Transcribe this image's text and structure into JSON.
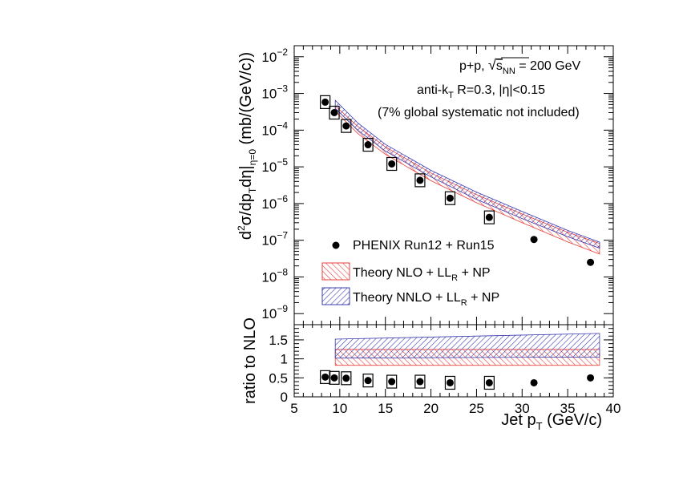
{
  "chart_data": [
    {
      "type": "scatter",
      "panel": "main",
      "ylabel_parts": {
        "a": "d",
        "b": "2",
        "c": "σ/dp",
        "d": "T",
        "e": "dη|",
        "f": "η=0",
        "g": " (mb/(GeV/c))"
      },
      "y_scale": "log",
      "ylim": [
        5e-10,
        0.02
      ],
      "xlim": [
        5,
        40
      ],
      "y_ticks": [
        {
          "v": 1e-09,
          "e": "−9"
        },
        {
          "v": 1e-08,
          "e": "−8"
        },
        {
          "v": 1e-07,
          "e": "−7"
        },
        {
          "v": 1e-06,
          "e": "−6"
        },
        {
          "v": 1e-05,
          "e": "−5"
        },
        {
          "v": 0.0001,
          "e": "−4"
        },
        {
          "v": 0.001,
          "e": "−3"
        },
        {
          "v": 0.01,
          "e": "−2"
        }
      ],
      "annotations": {
        "line1_a": "p+p, ",
        "line1_s": "s",
        "line1_nn": "NN",
        "line1_b": " = 200 GeV",
        "line2_a": "anti-k",
        "line2_t": "T",
        "line2_b": " R=0.3, |η|<0.15",
        "line3": "(7% global systematic not included)"
      },
      "legend": {
        "data": "PHENIX Run12 + Run15",
        "nlo_a": "Theory NLO + LL",
        "nlo_r": "R",
        "nlo_b": " + NP",
        "nnlo_a": "Theory NNLO + LL",
        "nnlo_r": "R",
        "nnlo_b": " + NP"
      },
      "series": [
        {
          "name": "PHENIX Run12 + Run15",
          "x": [
            8.4,
            9.4,
            10.7,
            13.1,
            15.7,
            18.8,
            22.1,
            26.4,
            31.3,
            37.5
          ],
          "y": [
            0.00058,
            0.0003,
            0.00013,
            4e-05,
            1.2e-05,
            4.3e-06,
            1.4e-06,
            4.2e-07,
            1.05e-07,
            2.5e-08
          ],
          "box": [
            true,
            true,
            true,
            true,
            true,
            true,
            true,
            true,
            false,
            false
          ]
        },
        {
          "name": "Theory NLO + LL_R + NP",
          "color": "#e8413c",
          "x": [
            9.5,
            12,
            15,
            20,
            25,
            30,
            35,
            38.5
          ],
          "low": [
            0.00033,
            8e-05,
            2.2e-05,
            4.2e-06,
            1.05e-06,
            3e-07,
            9e-08,
            4.2e-08
          ],
          "high": [
            0.00046,
            0.000125,
            3.5e-05,
            6.8e-06,
            1.75e-06,
            5.2e-07,
            1.65e-07,
            8.2e-08
          ]
        },
        {
          "name": "Theory NNLO + LL_R + NP",
          "color": "#3b3bb0",
          "x": [
            9.5,
            12,
            15,
            20,
            25,
            30,
            35,
            38.5
          ],
          "low": [
            0.00039,
            9.8e-05,
            2.7e-05,
            5.3e-06,
            1.3e-06,
            3.9e-07,
            1.25e-07,
            6.1e-08
          ],
          "high": [
            0.00065,
            0.000155,
            4.1e-05,
            8e-06,
            2.05e-06,
            6.1e-07,
            1.85e-07,
            8.9e-08
          ]
        }
      ]
    },
    {
      "type": "scatter",
      "panel": "ratio",
      "ylabel": "ratio to NLO",
      "xlabel_a": "Jet p",
      "xlabel_t": "T",
      "xlabel_b": " (GeV/c)",
      "ylim": [
        0,
        1.9
      ],
      "xlim": [
        5,
        40
      ],
      "y_ticks": [
        "0",
        "0.5",
        "1",
        "1.5"
      ],
      "x_ticks": [
        "5",
        "10",
        "15",
        "20",
        "25",
        "30",
        "35",
        "40"
      ],
      "series": [
        {
          "name": "PHENIX Run12 + Run15",
          "x": [
            8.4,
            9.4,
            10.7,
            13.1,
            15.7,
            18.8,
            22.1,
            26.4,
            31.3,
            37.5
          ],
          "y": [
            0.52,
            0.5,
            0.49,
            0.43,
            0.4,
            0.4,
            0.37,
            0.37,
            0.37,
            0.5
          ],
          "box": [
            true,
            true,
            true,
            true,
            true,
            true,
            true,
            true,
            false,
            false
          ]
        },
        {
          "name": "Theory NLO + LL_R + NP",
          "x": [
            9.5,
            38.5
          ],
          "low": [
            0.83,
            0.83
          ],
          "high": [
            1.25,
            1.25
          ]
        },
        {
          "name": "Theory NNLO + LL_R + NP",
          "x": [
            9.5,
            38.5
          ],
          "low": [
            1.02,
            1.05
          ],
          "high": [
            1.52,
            1.67
          ]
        }
      ]
    }
  ]
}
